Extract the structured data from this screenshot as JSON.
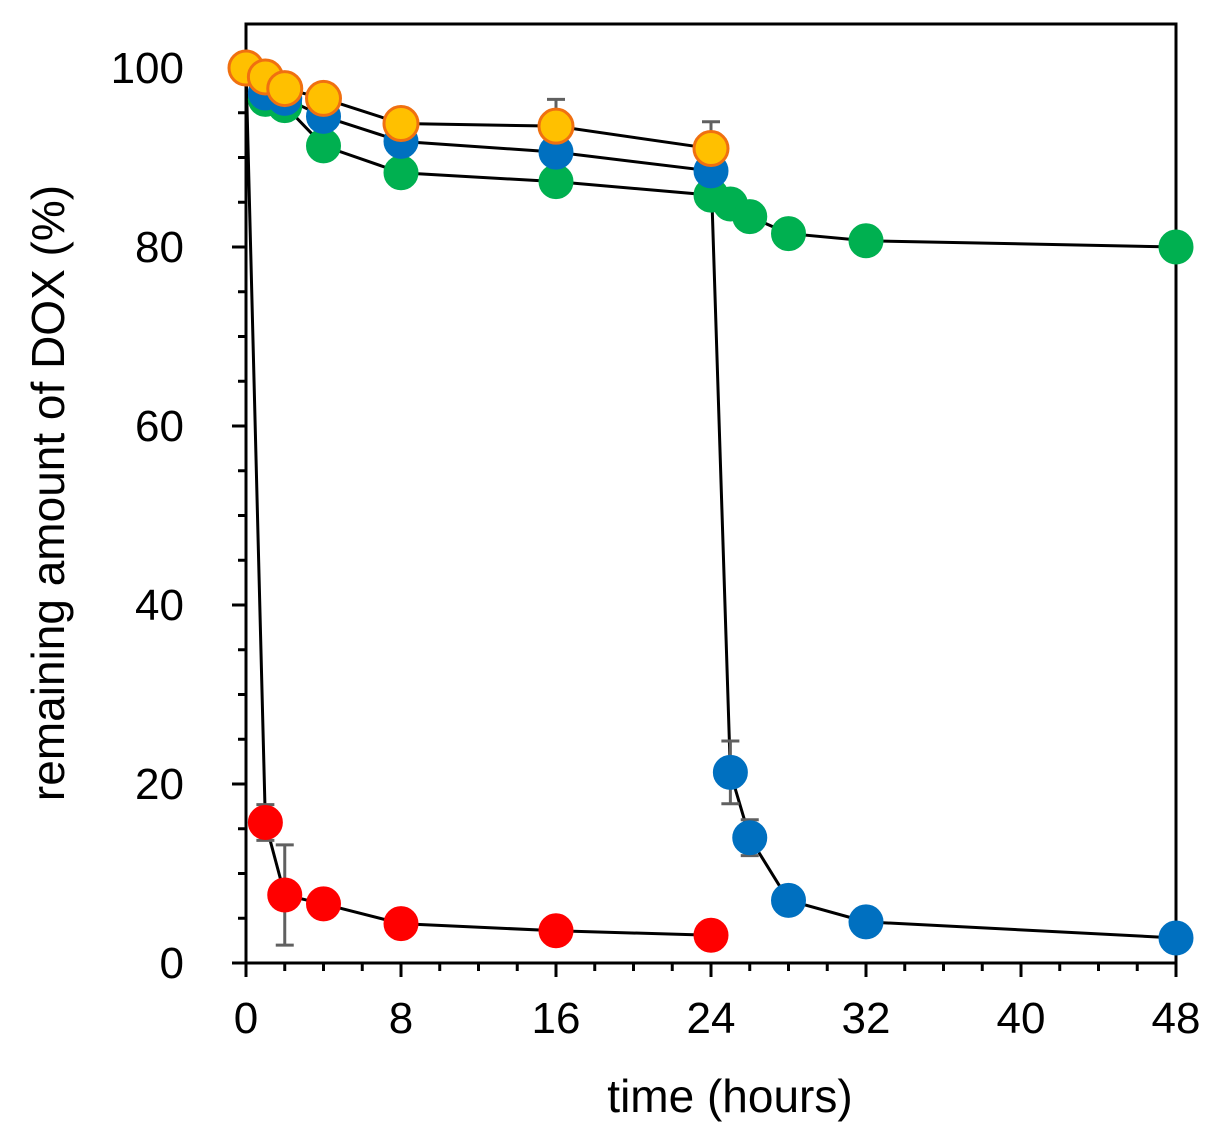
{
  "chart_data": {
    "type": "scatter",
    "title": "",
    "xlabel": "time (hours)",
    "ylabel": "remaining amount of DOX (%)",
    "xlim": [
      0,
      48
    ],
    "ylim": [
      0,
      100
    ],
    "xticks": [
      0,
      8,
      16,
      24,
      32,
      40,
      48
    ],
    "yticks": [
      0,
      20,
      40,
      60,
      80,
      100
    ],
    "x_minor_step": 2,
    "y_minor_step": 5,
    "grid": false,
    "legend": "none",
    "series": [
      {
        "name": "red",
        "color": "#ff0000",
        "stroke": "#ff0000",
        "points": [
          {
            "x": 0,
            "y": 100,
            "err": 0
          },
          {
            "x": 1,
            "y": 15.7,
            "err": 2
          },
          {
            "x": 2,
            "y": 7.6,
            "err": 5.6
          },
          {
            "x": 4,
            "y": 6.6,
            "err": 0
          },
          {
            "x": 8,
            "y": 4.4,
            "err": 0
          },
          {
            "x": 16,
            "y": 3.6,
            "err": 0
          },
          {
            "x": 24,
            "y": 3.1,
            "err": 0
          }
        ]
      },
      {
        "name": "green",
        "color": "#00b050",
        "stroke": "#00b050",
        "points": [
          {
            "x": 0,
            "y": 100,
            "err": 1
          },
          {
            "x": 1,
            "y": 96.5,
            "err": 1
          },
          {
            "x": 2,
            "y": 95.8,
            "err": 1
          },
          {
            "x": 4,
            "y": 91.3,
            "err": 1.5
          },
          {
            "x": 8,
            "y": 88.3,
            "err": 1.5
          },
          {
            "x": 16,
            "y": 87.3,
            "err": 1.5
          },
          {
            "x": 24,
            "y": 85.8,
            "err": 1.5
          },
          {
            "x": 25,
            "y": 84.8,
            "err": 1.5
          },
          {
            "x": 26,
            "y": 83.4,
            "err": 1.5
          },
          {
            "x": 28,
            "y": 81.5,
            "err": 1.5
          },
          {
            "x": 32,
            "y": 80.7,
            "err": 1.5
          },
          {
            "x": 48,
            "y": 80.0,
            "err": 1.5
          }
        ]
      },
      {
        "name": "blue",
        "color": "#0070c0",
        "stroke": "#0070c0",
        "points": [
          {
            "x": 0,
            "y": 100,
            "err": 1
          },
          {
            "x": 1,
            "y": 97.2,
            "err": 1
          },
          {
            "x": 2,
            "y": 96.6,
            "err": 1
          },
          {
            "x": 4,
            "y": 94.6,
            "err": 1.5
          },
          {
            "x": 8,
            "y": 91.8,
            "err": 1.5
          },
          {
            "x": 16,
            "y": 90.6,
            "err": 1.5
          },
          {
            "x": 24,
            "y": 88.5,
            "err": 1.5
          },
          {
            "x": 25,
            "y": 21.3,
            "err": 3.5
          },
          {
            "x": 26,
            "y": 14.0,
            "err": 2
          },
          {
            "x": 28,
            "y": 7.0,
            "err": 0
          },
          {
            "x": 32,
            "y": 4.6,
            "err": 0
          },
          {
            "x": 48,
            "y": 2.8,
            "err": 0
          }
        ]
      },
      {
        "name": "orange",
        "color": "#ffc000",
        "stroke": "#f07010",
        "points": [
          {
            "x": 0,
            "y": 100,
            "err": 1
          },
          {
            "x": 1,
            "y": 99.0,
            "err": 1
          },
          {
            "x": 2,
            "y": 97.7,
            "err": 1
          },
          {
            "x": 4,
            "y": 96.6,
            "err": 1
          },
          {
            "x": 8,
            "y": 93.8,
            "err": 1
          },
          {
            "x": 16,
            "y": 93.5,
            "err": 3
          },
          {
            "x": 24,
            "y": 91.0,
            "err": 3
          }
        ]
      }
    ]
  }
}
